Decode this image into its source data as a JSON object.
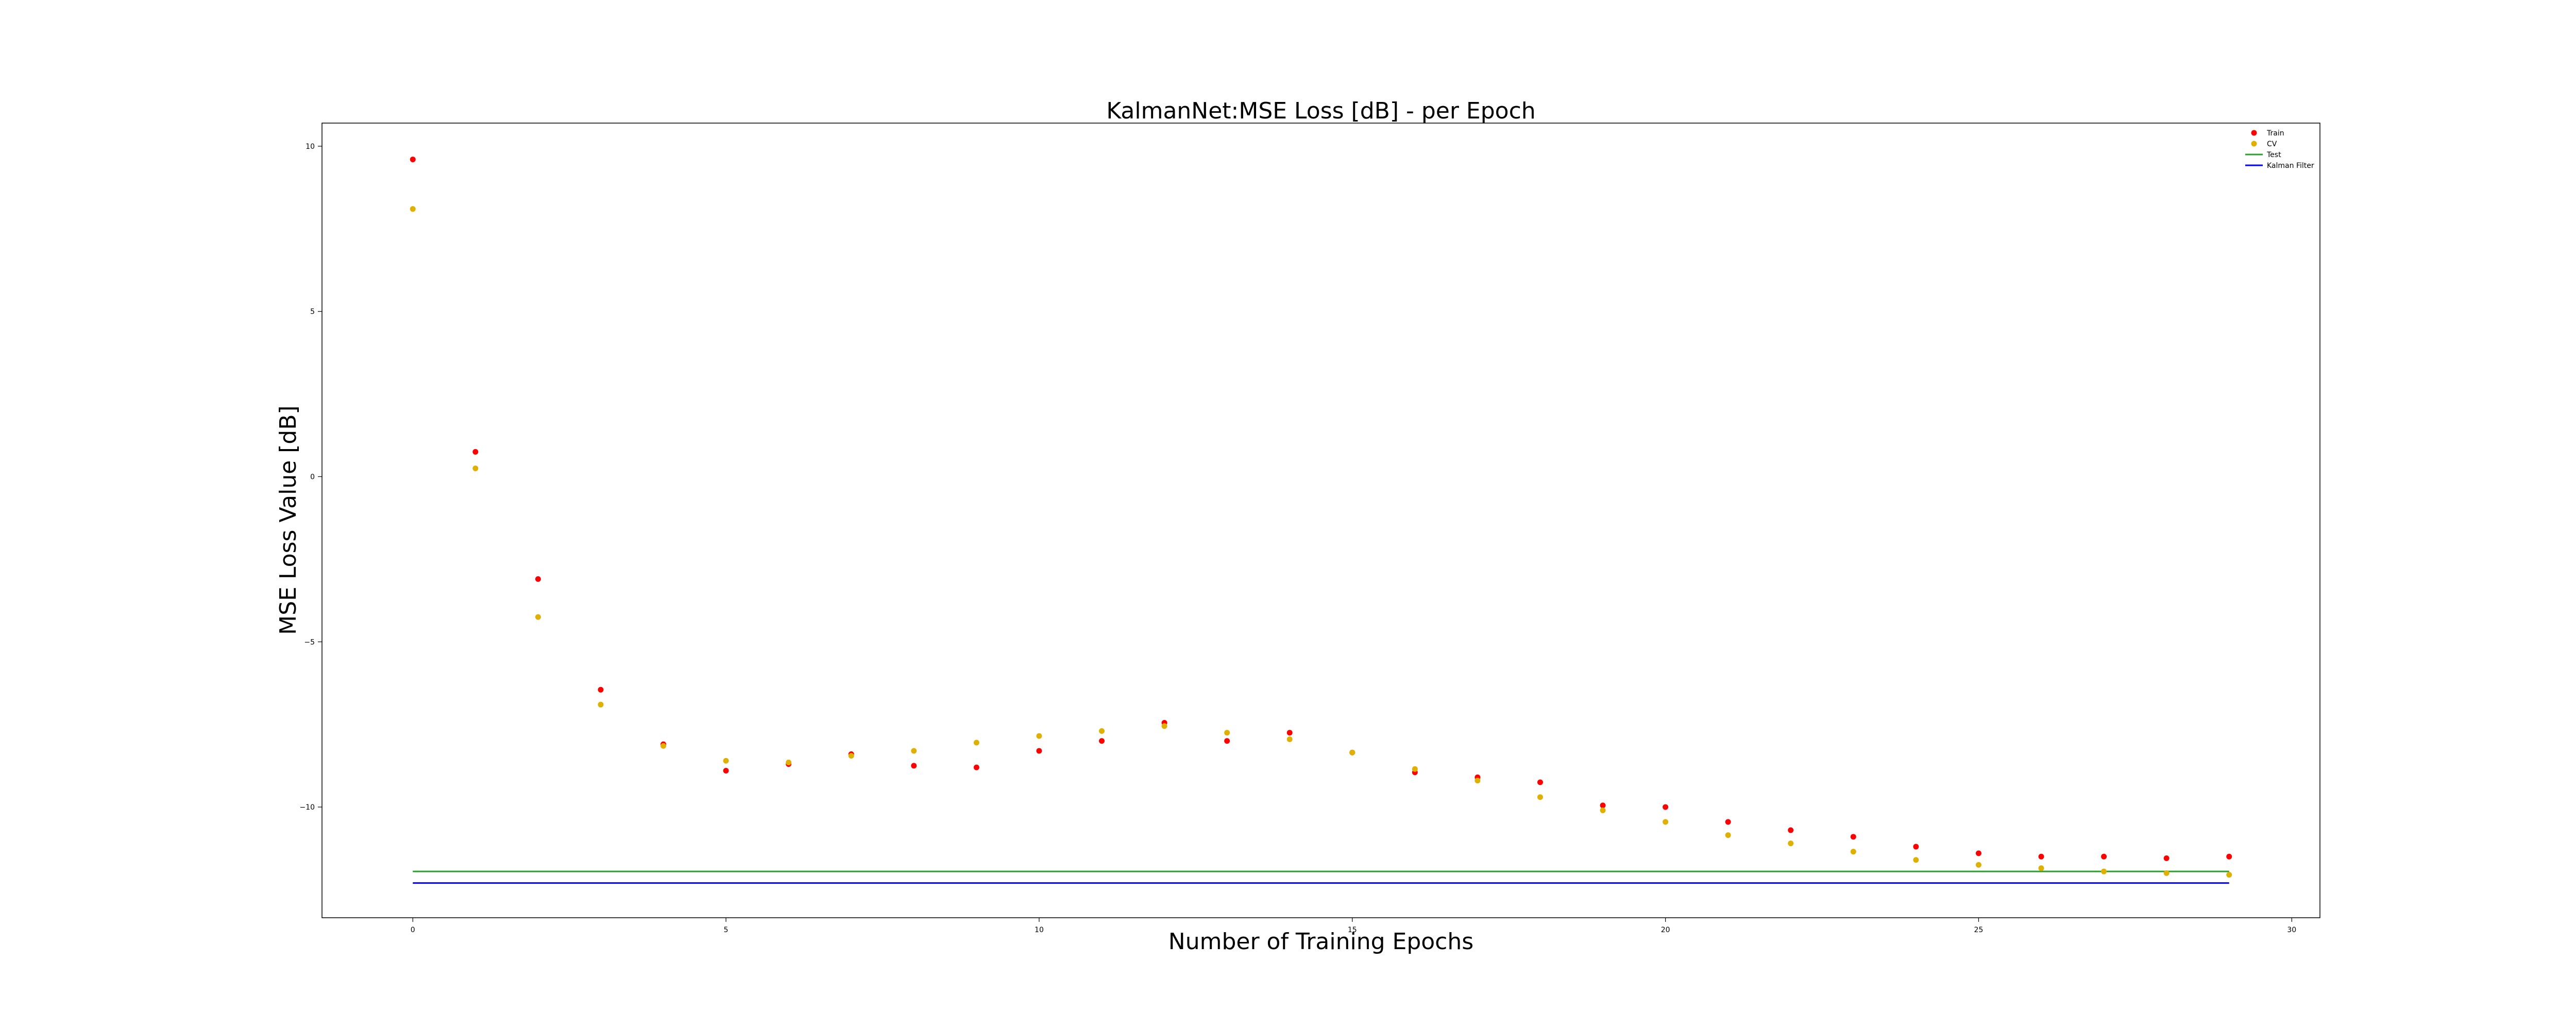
{
  "chart_data": {
    "type": "scatter",
    "title": "KalmanNet:MSE Loss [dB] - per Epoch",
    "xlabel": "Number of Training Epochs",
    "ylabel": "MSE Loss Value [dB]",
    "xlim": [
      -1.45,
      30.45
    ],
    "ylim": [
      -13.35,
      10.7
    ],
    "xticks": [
      0,
      5,
      10,
      15,
      20,
      25,
      30
    ],
    "yticks": [
      10,
      5,
      0,
      -5,
      -10
    ],
    "xtick_labels": [
      "0",
      "5",
      "10",
      "15",
      "20",
      "25",
      "30"
    ],
    "ytick_labels": [
      "10",
      "5",
      "0",
      "−5",
      "−10"
    ],
    "grid": false,
    "legend_position": "top-right",
    "x": [
      0,
      1,
      2,
      3,
      4,
      5,
      6,
      7,
      8,
      9,
      10,
      11,
      12,
      13,
      14,
      15,
      16,
      17,
      18,
      19,
      20,
      21,
      22,
      23,
      24,
      25,
      26,
      27,
      28,
      29
    ],
    "series": [
      {
        "name": "Train",
        "kind": "scatter",
        "color": "#ff0000",
        "values": [
          9.6,
          0.75,
          -3.1,
          -6.45,
          -8.1,
          -8.9,
          -8.7,
          -8.4,
          -8.75,
          -8.8,
          -8.3,
          -8.0,
          -7.45,
          -8.0,
          -7.75,
          -8.35,
          -8.95,
          -9.1,
          -9.25,
          -9.95,
          -10.0,
          -10.45,
          -10.7,
          -10.9,
          -11.2,
          -11.4,
          -11.5,
          -11.5,
          -11.55,
          -11.5
        ]
      },
      {
        "name": "CV",
        "kind": "scatter",
        "color": "#e0b000",
        "values": [
          8.1,
          0.25,
          -4.25,
          -6.9,
          -8.15,
          -8.6,
          -8.65,
          -8.45,
          -8.3,
          -8.05,
          -7.85,
          -7.7,
          -7.55,
          -7.75,
          -7.95,
          -8.35,
          -8.85,
          -9.2,
          -9.7,
          -10.1,
          -10.45,
          -10.85,
          -11.1,
          -11.35,
          -11.6,
          -11.75,
          -11.85,
          -11.95,
          -12.0,
          -12.05
        ]
      },
      {
        "name": "Test",
        "kind": "line",
        "color": "#2ca02c",
        "x": [
          0,
          29
        ],
        "values": [
          -11.95,
          -11.95
        ]
      },
      {
        "name": "Kalman Filter",
        "kind": "line",
        "color": "#0000ff",
        "x": [
          0,
          29
        ],
        "values": [
          -12.3,
          -12.3
        ]
      }
    ]
  }
}
